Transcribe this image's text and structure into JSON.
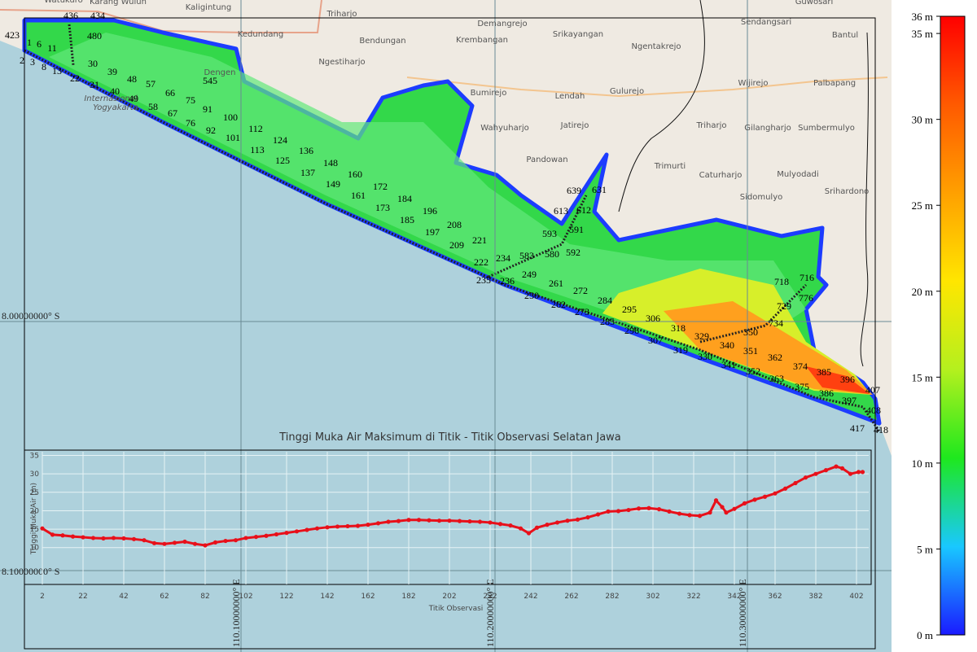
{
  "map": {
    "place_names": [
      "Watukuro",
      "Karang Wuluh",
      "Kaligintung",
      "Triharjo",
      "Kedundang",
      "Bendungan",
      "Demangrejo",
      "Srikayangan",
      "Krembangan",
      "Ngentakrejo",
      "Sendangsari",
      "Guwosari",
      "Bantul",
      "Ngestiharjo",
      "Dengen",
      "Bumirejo",
      "Lendah",
      "Gulurejo",
      "Wijirejo",
      "Palbapang",
      "Wahyuharjo",
      "Jatirejo",
      "Triharjo",
      "Gilangharjo",
      "Sumbermulyo",
      "Pandowan",
      "Trimurti",
      "Caturharjo",
      "Mulyodadi",
      "Sidomulyo",
      "Srihardono",
      "Internasional",
      "Yogyakarta"
    ],
    "coordinate_labels": [
      "8.00000000° S",
      "8.10000000° S",
      "110.10000000° E",
      "110.20000000° E",
      "110.30000000° E"
    ],
    "observation_point_labels": [
      "423",
      "436",
      "434",
      "1",
      "6",
      "11",
      "2",
      "3",
      "8",
      "13",
      "22",
      "31",
      "30",
      "39",
      "40",
      "48",
      "49",
      "57",
      "58",
      "66",
      "67",
      "75",
      "76",
      "91",
      "92",
      "100",
      "101",
      "112",
      "113",
      "124",
      "125",
      "136",
      "137",
      "148",
      "149",
      "160",
      "161",
      "172",
      "173",
      "184",
      "185",
      "196",
      "197",
      "208",
      "209",
      "221",
      "222",
      "234",
      "235",
      "236",
      "249",
      "250",
      "261",
      "262",
      "272",
      "273",
      "284",
      "285",
      "295",
      "296",
      "306",
      "307",
      "318",
      "319",
      "329",
      "330",
      "340",
      "341",
      "350",
      "351",
      "352",
      "362",
      "363",
      "374",
      "375",
      "385",
      "386",
      "396",
      "397",
      "407",
      "408",
      "417",
      "418",
      "545",
      "480",
      "583",
      "580",
      "592",
      "593",
      "591",
      "613",
      "612",
      "639",
      "631",
      "718",
      "716",
      "729",
      "734",
      "776"
    ]
  },
  "colorbar": {
    "lim": [
      0,
      36
    ],
    "colors": [
      "#1a1aff",
      "#19c8ff",
      "#1ee81e",
      "#b4f01e",
      "#ffe600",
      "#ffa000",
      "#ff5a00",
      "#ff0000"
    ],
    "ticks": [
      {
        "value": 0,
        "label": "0 m"
      },
      {
        "value": 5,
        "label": "5 m"
      },
      {
        "value": 10,
        "label": "10 m"
      },
      {
        "value": 15,
        "label": "15 m"
      },
      {
        "value": 20,
        "label": "20 m"
      },
      {
        "value": 25,
        "label": "25 m"
      },
      {
        "value": 30,
        "label": "30 m"
      },
      {
        "value": 35,
        "label": "35 m"
      },
      {
        "value": 36,
        "label": "36 m"
      }
    ]
  },
  "chart_data": {
    "type": "scatter",
    "title": "Tinggi Muka Air Maksimum di Titik - Titik Observasi Selatan Jawa",
    "x_label": "Titik Observasi",
    "y_label": "Tinggi Muka Air (m)",
    "x": [
      2,
      7,
      12,
      17,
      22,
      27,
      32,
      37,
      42,
      47,
      52,
      57,
      62,
      67,
      72,
      77,
      82,
      87,
      92,
      97,
      102,
      107,
      112,
      117,
      122,
      127,
      132,
      137,
      142,
      147,
      152,
      157,
      162,
      167,
      172,
      177,
      182,
      187,
      192,
      197,
      202,
      207,
      212,
      217,
      222,
      227,
      232,
      237,
      241,
      245,
      250,
      255,
      260,
      265,
      270,
      275,
      280,
      285,
      290,
      295,
      300,
      305,
      310,
      315,
      320,
      325,
      330,
      333,
      336,
      338,
      342,
      347,
      352,
      357,
      362,
      367,
      372,
      377,
      382,
      387,
      392,
      395,
      399,
      403,
      405
    ],
    "series": [
      {
        "color": "#e8101a",
        "values": [
          15.2,
          13.5,
          13.3,
          13,
          12.8,
          12.6,
          12.5,
          12.6,
          12.5,
          12.3,
          12,
          11.2,
          11,
          11.3,
          11.6,
          11,
          10.6,
          11.4,
          11.8,
          12,
          12.6,
          12.9,
          13.2,
          13.6,
          14,
          14.4,
          14.8,
          15.2,
          15.5,
          15.7,
          15.8,
          15.9,
          16.2,
          16.6,
          17,
          17.2,
          17.5,
          17.5,
          17.4,
          17.3,
          17.3,
          17.2,
          17.1,
          17,
          16.8,
          16.4,
          16,
          15.2,
          13.9,
          15.4,
          16.2,
          16.8,
          17.3,
          17.6,
          18.2,
          19,
          19.8,
          19.9,
          20.2,
          20.6,
          20.7,
          20.4,
          19.8,
          19.2,
          18.8,
          18.6,
          19.5,
          22.8,
          21,
          19.5,
          20.5,
          22,
          23,
          23.8,
          24.7,
          26,
          27.5,
          29,
          30,
          31,
          32,
          31.5,
          30,
          30.5,
          30.5
        ]
      }
    ],
    "xlim": [
      2,
      408
    ],
    "ylim": [
      0,
      36
    ],
    "xticks": [
      2,
      22,
      42,
      62,
      82,
      102,
      122,
      142,
      162,
      182,
      202,
      222,
      242,
      262,
      282,
      302,
      322,
      342,
      362,
      382,
      402
    ],
    "yticks": [
      10,
      15,
      20,
      25,
      30,
      35
    ],
    "grid": true
  }
}
